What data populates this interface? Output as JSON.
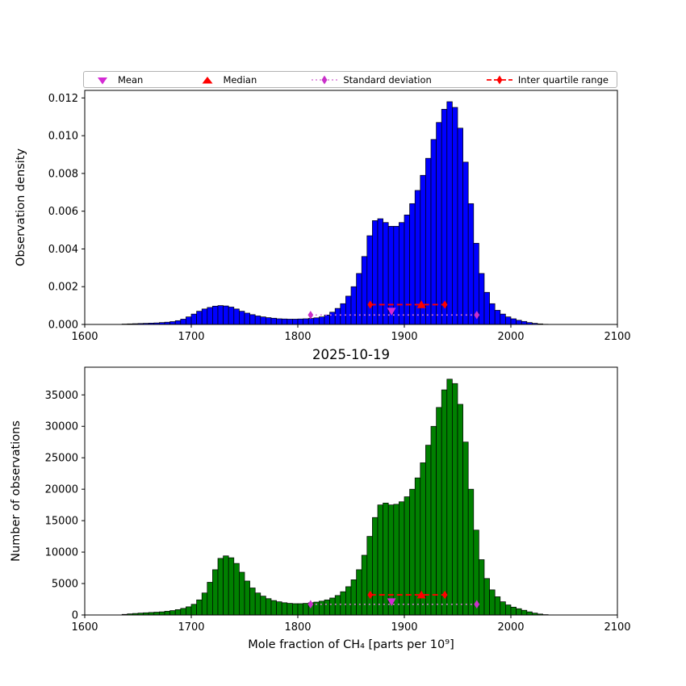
{
  "figure": {
    "title": "2025-10-19"
  },
  "colors": {
    "top_bar": "#0000ff",
    "bottom_bar": "#008000",
    "bar_edge": "#000000",
    "mean": "#d42bd4",
    "median": "#ff0000",
    "std_line": "#d87ad8",
    "std_marker": "#c930c9",
    "iqr": "#ff0000"
  },
  "legend": {
    "items": [
      {
        "label": "Mean",
        "marker": "triangle-down-icon"
      },
      {
        "label": "Median",
        "marker": "triangle-up-icon"
      },
      {
        "label": "Standard deviation",
        "marker": "diamond-dotted-line-icon"
      },
      {
        "label": "Inter quartile range",
        "marker": "diamond-dashed-line-icon"
      }
    ]
  },
  "chart_data": [
    {
      "type": "bar",
      "title": "",
      "xlabel": "",
      "ylabel": "Observation density",
      "xlim": [
        1600,
        2100
      ],
      "ylim": [
        0,
        0.0124
      ],
      "xticks": [
        1600,
        1700,
        1800,
        1900,
        2000,
        2100
      ],
      "yticks": [
        0,
        0.002,
        0.004,
        0.006,
        0.008,
        0.01,
        0.012
      ],
      "ytick_labels": [
        "0.000",
        "0.002",
        "0.004",
        "0.006",
        "0.008",
        "0.010",
        "0.012"
      ],
      "bin_start": 1600,
      "bin_width": 5,
      "bar_color": "#0000ff",
      "values": [
        0,
        0,
        0,
        0,
        0,
        0,
        0,
        2e-05,
        3e-05,
        4e-05,
        5e-05,
        6e-05,
        7e-05,
        8e-05,
        0.0001,
        0.00012,
        0.00015,
        0.0002,
        0.00028,
        0.0004,
        0.00055,
        0.0007,
        0.00082,
        0.0009,
        0.00097,
        0.001,
        0.00098,
        0.00092,
        0.00082,
        0.0007,
        0.0006,
        0.00052,
        0.00045,
        0.0004,
        0.00036,
        0.00033,
        0.0003,
        0.00029,
        0.00028,
        0.00028,
        0.00029,
        0.0003,
        0.00032,
        0.00035,
        0.0004,
        0.0005,
        0.00065,
        0.00085,
        0.0011,
        0.0015,
        0.002,
        0.0027,
        0.0036,
        0.0047,
        0.0055,
        0.0056,
        0.0054,
        0.0052,
        0.0052,
        0.0054,
        0.0058,
        0.0064,
        0.0071,
        0.0079,
        0.0088,
        0.0098,
        0.0107,
        0.0114,
        0.0118,
        0.0115,
        0.0104,
        0.0086,
        0.0064,
        0.0043,
        0.0027,
        0.0017,
        0.0011,
        0.00075,
        0.00055,
        0.0004,
        0.0003,
        0.00022,
        0.00016,
        0.0001,
        6e-05,
        3e-05,
        1e-05,
        0,
        0,
        0,
        0,
        0,
        0,
        0,
        0,
        0,
        0,
        0,
        0,
        0
      ],
      "markers": {
        "mean_x": 1888,
        "mean_y": 0.0007,
        "median_x": 1916,
        "iqr": [
          1868,
          1938
        ],
        "iqr_y": 0.00105,
        "std": [
          1812,
          1968
        ],
        "std_y": 0.0005
      }
    },
    {
      "type": "bar",
      "title": "2025-10-19",
      "xlabel": "Mole fraction of CH₄ [parts per 10⁹]",
      "ylabel": "Number of observations",
      "xlim": [
        1600,
        2100
      ],
      "ylim": [
        0,
        39400
      ],
      "xticks": [
        1600,
        1700,
        1800,
        1900,
        2000,
        2100
      ],
      "yticks": [
        0,
        5000,
        10000,
        15000,
        20000,
        25000,
        30000,
        35000
      ],
      "ytick_labels": [
        "0",
        "5000",
        "10000",
        "15000",
        "20000",
        "25000",
        "30000",
        "35000"
      ],
      "bin_start": 1600,
      "bin_width": 5,
      "bar_color": "#008000",
      "values": [
        0,
        0,
        0,
        0,
        0,
        0,
        0,
        100,
        180,
        240,
        300,
        350,
        400,
        450,
        500,
        600,
        700,
        850,
        1050,
        1300,
        1700,
        2400,
        3500,
        5200,
        7200,
        9000,
        9400,
        9100,
        8200,
        6800,
        5400,
        4300,
        3500,
        3000,
        2600,
        2300,
        2100,
        1950,
        1850,
        1800,
        1800,
        1850,
        1950,
        2050,
        2200,
        2400,
        2700,
        3100,
        3700,
        4500,
        5600,
        7200,
        9500,
        12500,
        15500,
        17500,
        17800,
        17500,
        17600,
        18000,
        18800,
        20000,
        21800,
        24200,
        27000,
        30000,
        33000,
        35800,
        37500,
        36800,
        33500,
        27500,
        20000,
        13500,
        8800,
        5800,
        4000,
        2900,
        2100,
        1600,
        1250,
        1000,
        750,
        500,
        300,
        150,
        60,
        20,
        0,
        0,
        0,
        0,
        0,
        0,
        0,
        0,
        0,
        0,
        0,
        0
      ],
      "markers": {
        "mean_x": 1888,
        "mean_y": 2100,
        "median_x": 1916,
        "iqr": [
          1868,
          1938
        ],
        "iqr_y": 3200,
        "std": [
          1812,
          1968
        ],
        "std_y": 1700
      }
    }
  ]
}
